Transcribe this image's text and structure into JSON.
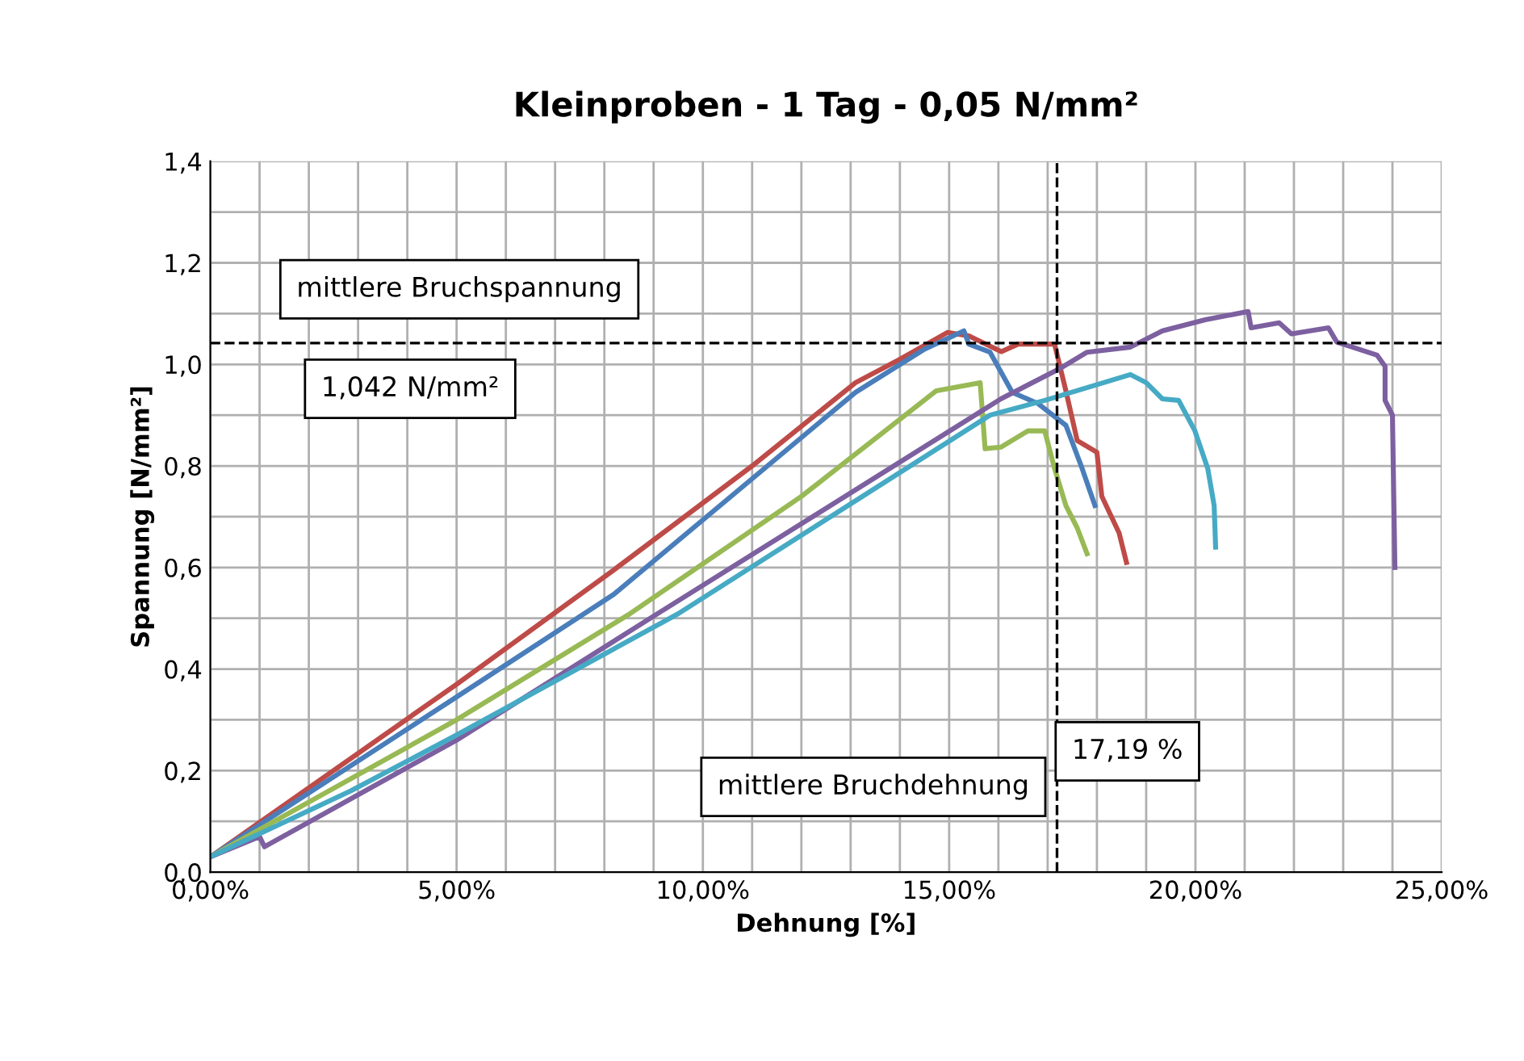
{
  "chart_data": {
    "type": "line",
    "title": "Kleinproben - 1 Tag - 0,05 N/mm²",
    "xlabel": "Dehnung [%]",
    "ylabel": "Spannung [N/mm²]",
    "xlim": [
      0,
      25
    ],
    "ylim": [
      0,
      1.4
    ],
    "xticks": [
      {
        "value": 0,
        "label": "0,00%"
      },
      {
        "value": 1,
        "label": null
      },
      {
        "value": 2,
        "label": null
      },
      {
        "value": 3,
        "label": null
      },
      {
        "value": 4,
        "label": null
      },
      {
        "value": 5,
        "label": "5,00%"
      },
      {
        "value": 6,
        "label": null
      },
      {
        "value": 7,
        "label": null
      },
      {
        "value": 8,
        "label": null
      },
      {
        "value": 9,
        "label": null
      },
      {
        "value": 10,
        "label": "10,00%"
      },
      {
        "value": 11,
        "label": null
      },
      {
        "value": 12,
        "label": null
      },
      {
        "value": 13,
        "label": null
      },
      {
        "value": 14,
        "label": null
      },
      {
        "value": 15,
        "label": "15,00%"
      },
      {
        "value": 16,
        "label": null
      },
      {
        "value": 17,
        "label": null
      },
      {
        "value": 18,
        "label": null
      },
      {
        "value": 19,
        "label": null
      },
      {
        "value": 20,
        "label": "20,00%"
      },
      {
        "value": 21,
        "label": null
      },
      {
        "value": 22,
        "label": null
      },
      {
        "value": 23,
        "label": null
      },
      {
        "value": 24,
        "label": null
      },
      {
        "value": 25,
        "label": "25,00%"
      }
    ],
    "yticks": [
      {
        "value": 0,
        "label": "0,0"
      },
      {
        "value": 0.1,
        "label": null
      },
      {
        "value": 0.2,
        "label": "0,2"
      },
      {
        "value": 0.3,
        "label": null
      },
      {
        "value": 0.4,
        "label": "0,4"
      },
      {
        "value": 0.5,
        "label": null
      },
      {
        "value": 0.6,
        "label": "0,6"
      },
      {
        "value": 0.7,
        "label": null
      },
      {
        "value": 0.8,
        "label": "0,8"
      },
      {
        "value": 0.9,
        "label": null
      },
      {
        "value": 1.0,
        "label": "1,0"
      },
      {
        "value": 1.1,
        "label": null
      },
      {
        "value": 1.2,
        "label": "1,2"
      },
      {
        "value": 1.3,
        "label": null
      },
      {
        "value": 1.4,
        "label": "1,4"
      }
    ],
    "grid": true,
    "legend": false,
    "marker": "none",
    "line_style": "solid",
    "series": [
      {
        "color": "#be4b48",
        "x": [
          0,
          5,
          8.19,
          11,
          13.1,
          14.0,
          14.97,
          15.4,
          16.06,
          16.4,
          17.14,
          17.37,
          17.6,
          18.0,
          18.1,
          18.45,
          18.6
        ],
        "values": [
          0.03,
          0.37,
          0.595,
          0.8,
          0.964,
          1.01,
          1.063,
          1.056,
          1.025,
          1.04,
          1.04,
          0.948,
          0.85,
          0.827,
          0.74,
          0.668,
          0.61
        ]
      },
      {
        "color": "#4a7ebb",
        "x": [
          0,
          5,
          8.19,
          13.1,
          14.5,
          15.3,
          15.4,
          15.83,
          16.28,
          16.8,
          17.37,
          17.7,
          17.96
        ],
        "values": [
          0.03,
          0.345,
          0.547,
          0.945,
          1.03,
          1.066,
          1.04,
          1.024,
          0.945,
          0.923,
          0.88,
          0.795,
          0.722
        ]
      },
      {
        "color": "#98b954",
        "x": [
          0,
          5,
          8.52,
          12,
          14.74,
          15.63,
          15.73,
          16.05,
          16.6,
          16.94,
          17.14,
          17.37,
          17.6,
          17.8
        ],
        "values": [
          0.03,
          0.3,
          0.509,
          0.74,
          0.948,
          0.964,
          0.834,
          0.837,
          0.869,
          0.869,
          0.795,
          0.722,
          0.678,
          0.627
        ]
      },
      {
        "color": "#7d60a0",
        "x": [
          0,
          1.0,
          1.1,
          5,
          9.08,
          16.05,
          17.27,
          17.8,
          18.68,
          19.33,
          20.2,
          21.07,
          21.13,
          21.7,
          21.95,
          22.7,
          22.87,
          23.69,
          23.85,
          23.85,
          24.0,
          24.05
        ],
        "values": [
          0.03,
          0.07,
          0.05,
          0.26,
          0.509,
          0.932,
          0.993,
          1.024,
          1.034,
          1.066,
          1.088,
          1.104,
          1.072,
          1.082,
          1.06,
          1.072,
          1.044,
          1.018,
          0.996,
          0.929,
          0.9,
          0.6
        ]
      },
      {
        "color": "#46aac5",
        "x": [
          0,
          2.85,
          5,
          9.5,
          15.83,
          16.94,
          18.68,
          19.0,
          19.33,
          19.66,
          19.99,
          20.25,
          20.38,
          20.41
        ],
        "values": [
          0.03,
          0.16,
          0.27,
          0.509,
          0.9,
          0.929,
          0.98,
          0.964,
          0.932,
          0.929,
          0.869,
          0.795,
          0.722,
          0.64
        ]
      }
    ],
    "ref_lines": [
      {
        "axis": "y",
        "value": 1.042,
        "label": "1,042 N/mm²",
        "color": "#000000",
        "line_style": "dashed"
      },
      {
        "axis": "x",
        "value": 17.19,
        "label": "17,19 %",
        "color": "#000000",
        "line_style": "dashed"
      }
    ],
    "annotations": [
      "mittlere Bruchspannung",
      "mittlere Bruchdehnung"
    ]
  }
}
